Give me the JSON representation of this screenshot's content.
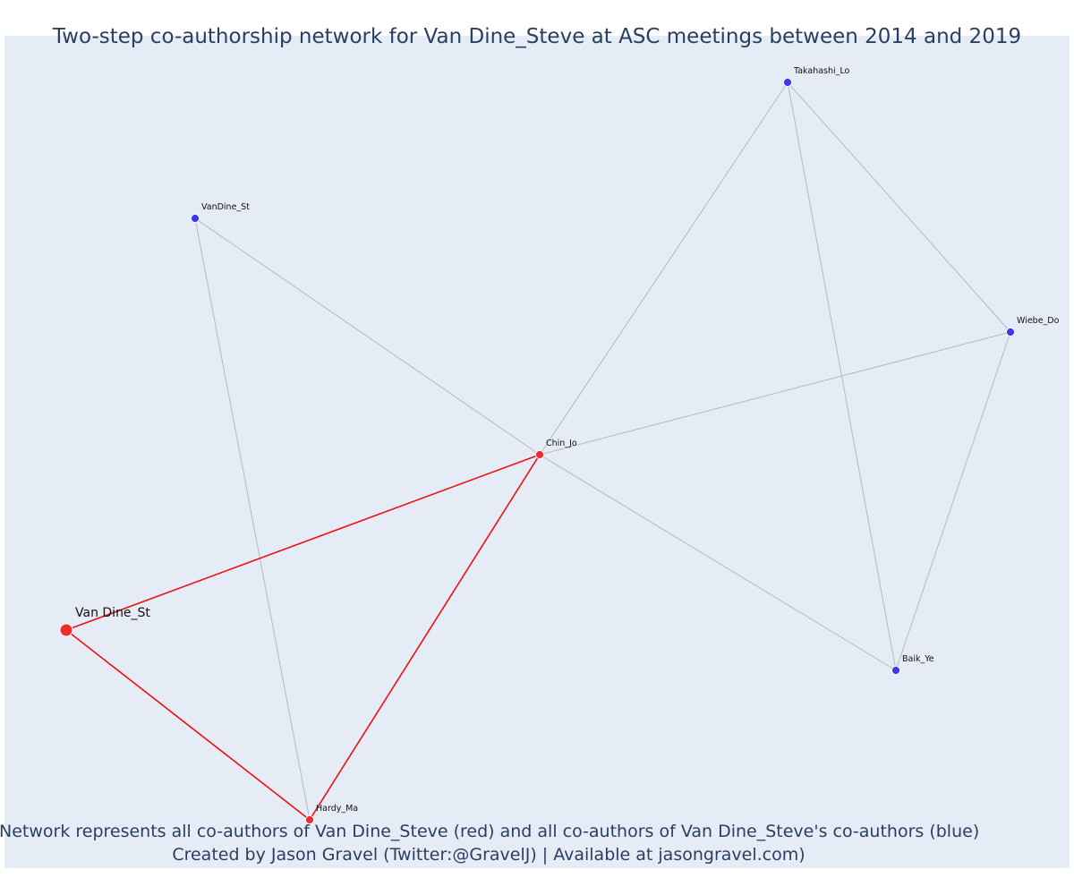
{
  "title": "Two-step co-authorship network for Van Dine_Steve at ASC meetings between 2014 and 2019",
  "caption_line1": "Network represents all co-authors of Van Dine_Steve (red) and all co-authors of Van Dine_Steve's co-authors (blue)",
  "caption_line2": "Created by Jason Gravel (Twitter:@GravelJ) | Available at jasongravel.com)",
  "colors": {
    "background": "#e5ecf6",
    "coauthor_node": "#ef2b2b",
    "second_step_node": "#3a3ae8",
    "focal_edge": "#ee1111",
    "other_edge": "#b5b9c6",
    "text": "#2a3f5f"
  },
  "nodes": [
    {
      "id": "van_dine",
      "label": "Van Dine_St",
      "group": "focal"
    },
    {
      "id": "chin",
      "label": "Chin_Jo",
      "group": "coauthor"
    },
    {
      "id": "hardy",
      "label": "Hardy_Ma",
      "group": "coauthor"
    },
    {
      "id": "vandine_st",
      "label": "VanDine_St",
      "group": "second_step"
    },
    {
      "id": "takahashi",
      "label": "Takahashi_Lo",
      "group": "second_step"
    },
    {
      "id": "wiebe",
      "label": "Wiebe_Do",
      "group": "second_step"
    },
    {
      "id": "baik",
      "label": "Baik_Ye",
      "group": "second_step"
    }
  ],
  "edges": [
    {
      "source": "vandine_st",
      "target": "chin",
      "type": "other"
    },
    {
      "source": "vandine_st",
      "target": "hardy",
      "type": "other"
    },
    {
      "source": "chin",
      "target": "takahashi",
      "type": "other"
    },
    {
      "source": "chin",
      "target": "wiebe",
      "type": "other"
    },
    {
      "source": "chin",
      "target": "baik",
      "type": "other"
    },
    {
      "source": "takahashi",
      "target": "wiebe",
      "type": "other"
    },
    {
      "source": "takahashi",
      "target": "baik",
      "type": "other"
    },
    {
      "source": "wiebe",
      "target": "baik",
      "type": "other"
    },
    {
      "source": "van_dine",
      "target": "chin",
      "type": "focal"
    },
    {
      "source": "van_dine",
      "target": "hardy",
      "type": "focal"
    },
    {
      "source": "chin",
      "target": "hardy",
      "type": "focal"
    }
  ]
}
